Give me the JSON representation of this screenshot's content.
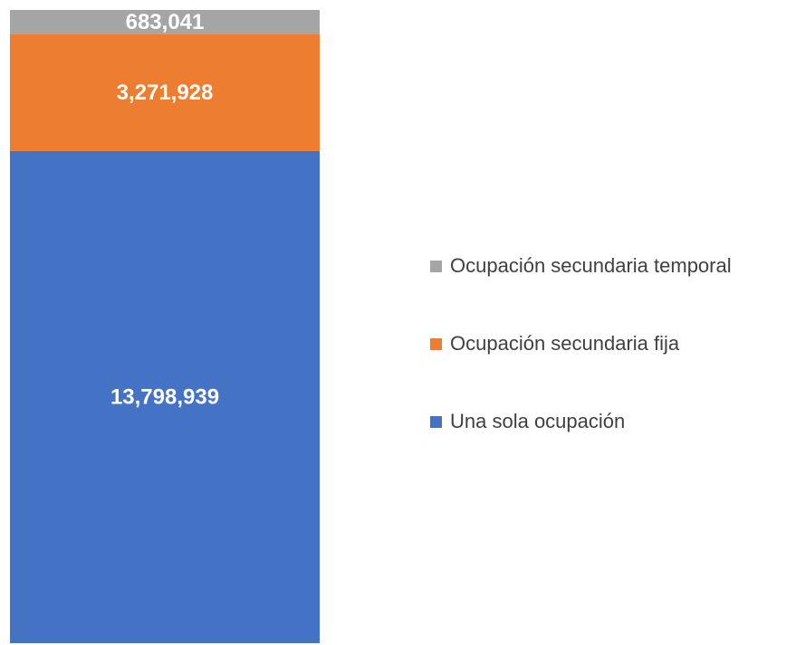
{
  "chart_data": {
    "type": "stacked_bar",
    "categories": [
      null
    ],
    "series": [
      {
        "name": "Una sola ocupación",
        "color": "#4472c4",
        "values": [
          13798939
        ],
        "value_labels": [
          "13,798,939"
        ]
      },
      {
        "name": "Ocupación secundaria fija",
        "color": "#ed7d31",
        "values": [
          3271928
        ],
        "value_labels": [
          "3,271,928"
        ]
      },
      {
        "name": "Ocupación secundaria temporal",
        "color": "#a5a5a5",
        "values": [
          683041
        ],
        "value_labels": [
          "683,041"
        ]
      }
    ]
  }
}
